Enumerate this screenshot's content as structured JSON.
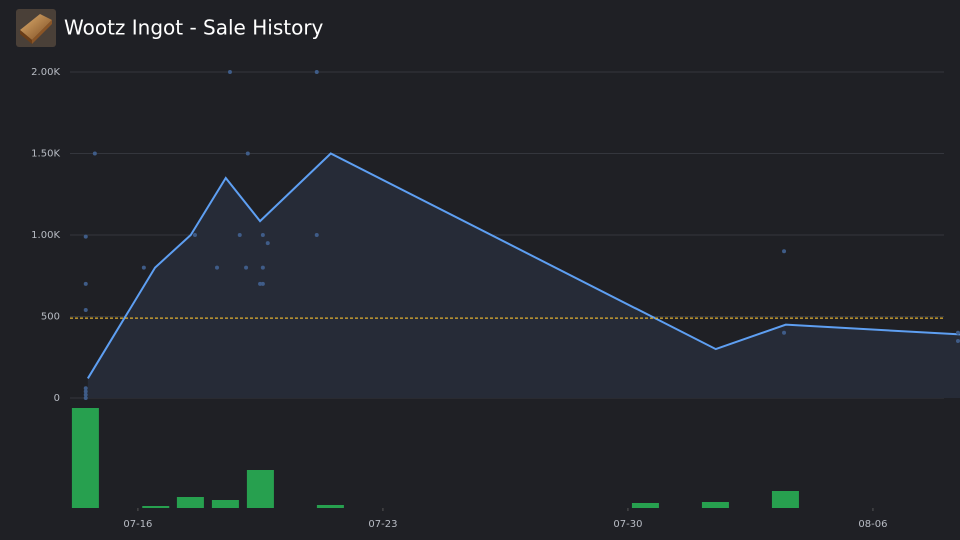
{
  "chart_data": {
    "type": "line",
    "title": "Wootz Ingot - Sale History",
    "xlim": [
      14.06,
      39.03
    ],
    "ylim": [
      0,
      2000
    ],
    "xticks": [
      {
        "value": 16,
        "label": "07-16"
      },
      {
        "value": 23,
        "label": "07-23"
      },
      {
        "value": 30,
        "label": "07-30"
      },
      {
        "value": 37,
        "label": "08-06"
      }
    ],
    "yticks": [
      0,
      500,
      {
        "value": 1000,
        "label": "1.00K"
      },
      {
        "value": 1500,
        "label": "1.50K"
      },
      {
        "value": 2000,
        "label": "2.00K"
      }
    ],
    "grid": true,
    "series": [
      {
        "type": "line",
        "color": "#5e9ff2",
        "x": [
          14.57,
          16.49,
          17.51,
          18.51,
          19.49,
          21.51,
          32.51,
          34.51,
          39.49
        ],
        "values": [
          120,
          800,
          1000,
          1350,
          1085,
          1500,
          300,
          450,
          390
        ]
      },
      {
        "type": "scatter",
        "color": "#3f5c88",
        "x": [
          14.51,
          14.51,
          14.51,
          14.51,
          14.51,
          14.51,
          14.51,
          14.77,
          16.17,
          17.63,
          18.26,
          18.63,
          18.91,
          19.09,
          19.14,
          19.49,
          19.57,
          19.57,
          19.57,
          19.71,
          21.11,
          21.11,
          34.46,
          34.46,
          39.43,
          39.43
        ],
        "values": [
          990,
          700,
          540,
          60,
          40,
          20,
          0,
          1500,
          800,
          1000,
          800,
          2000,
          1000,
          800,
          1500,
          700,
          700,
          1000,
          800,
          950,
          2000,
          1000,
          900,
          400,
          400,
          350
        ]
      },
      {
        "type": "bar",
        "color": "#27a04f",
        "x": [
          14.5,
          16.51,
          17.5,
          18.5,
          19.5,
          21.5,
          30.5,
          32.5,
          34.5
        ],
        "values": [
          100,
          2,
          11,
          8,
          38,
          3,
          5,
          6,
          17
        ]
      }
    ],
    "reference_line": {
      "value": 490,
      "color": "#e0b030"
    }
  }
}
